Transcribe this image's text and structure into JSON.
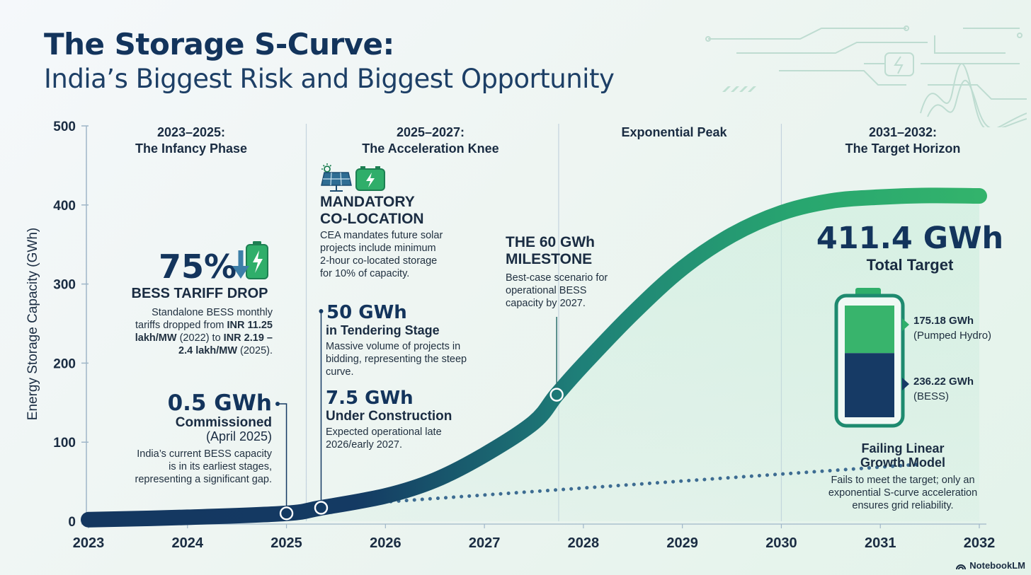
{
  "header": {
    "title": "The Storage S-Curve:",
    "subtitle": "India’s Biggest Risk and Biggest Opportunity"
  },
  "phases": [
    {
      "line1": "2023–2025:",
      "line2": "The Infancy Phase"
    },
    {
      "line1": "2025–2027:",
      "line2": "The Acceleration Knee"
    },
    {
      "line1": "Exponential Peak",
      "line2": ""
    },
    {
      "line1": "2031–2032:",
      "line2": "The Target Horizon"
    }
  ],
  "tariff": {
    "percent": "75%",
    "heading": "BESS TARIFF DROP",
    "t1": "Standalone BESS monthly",
    "t2": "tariffs dropped from ",
    "b1": "INR 11.25",
    "b2": "lakh/MW",
    "t3": " (2022) to ",
    "b3": "INR 2.19 –",
    "b4": "2.4 lakh/MW",
    "t4": " (2025)."
  },
  "commissioned": {
    "value": "0.5 GWh",
    "heading": "Commissioned",
    "sub": "(April 2025)",
    "desc1": "India’s current BESS capacity",
    "desc2": "is in its earliest stages,",
    "desc3": "representing a significant gap."
  },
  "colocation": {
    "h1": "MANDATORY",
    "h2": "CO-LOCATION",
    "d1": "CEA mandates future solar",
    "d2": "projects include minimum",
    "d3": "2-hour co-located storage",
    "d4": "for 10% of capacity."
  },
  "tendering": {
    "value": "50 GWh",
    "heading": "in Tendering Stage",
    "d1": "Massive volume of projects in",
    "d2": "bidding, representing the steep",
    "d3": "curve."
  },
  "construction": {
    "value": "7.5 GWh",
    "heading": "Under Construction",
    "d1": "Expected operational late",
    "d2": "2026/early 2027."
  },
  "milestone": {
    "h1": "THE 60 GWh",
    "h2": "MILESTONE",
    "d1": "Best-case scenario for",
    "d2": "operational BESS",
    "d3": "capacity by 2027."
  },
  "target": {
    "value": "411.4 GWh",
    "label": "Total Target",
    "hydro_value": "175.18 GWh",
    "hydro_label": "(Pumped Hydro)",
    "hydro_gwh": 175.18,
    "bess_value": "236.22 GWh",
    "bess_label": "(BESS)",
    "bess_gwh": 236.22
  },
  "linear": {
    "h1": "Failing Linear",
    "h2": "Growth Model",
    "d1": "Fails to meet the target; only an",
    "d2": "exponential S-curve acceleration",
    "d3": "ensures grid reliability."
  },
  "watermark": "NotebookLM",
  "colors": {
    "navy": "#143760",
    "teal": "#1e8c77",
    "green": "#33b36c",
    "dotted": "#3d6c92"
  },
  "chart_data": {
    "type": "line",
    "title": "The Storage S-Curve",
    "xlabel": "",
    "ylabel": "Energy Storage Capacity (GWh)",
    "x_ticks": [
      "2023",
      "2024",
      "2025",
      "2026",
      "2027",
      "2028",
      "2029",
      "2030",
      "2031",
      "2032"
    ],
    "y_ticks": [
      "0",
      "100",
      "200",
      "300",
      "400",
      "500"
    ],
    "xlim": [
      2023,
      2032
    ],
    "ylim": [
      0,
      500
    ],
    "series": [
      {
        "name": "S-Curve",
        "x": [
          2023,
          2024,
          2025,
          2025.35,
          2026,
          2026.5,
          2027,
          2027.5,
          2027.73,
          2028,
          2028.5,
          2029,
          2029.5,
          2030,
          2030.5,
          2031,
          2031.5,
          2032
        ],
        "y": [
          2,
          5,
          10,
          17,
          32,
          52,
          84,
          125,
          160,
          198,
          263,
          320,
          362,
          390,
          405,
          410,
          412,
          411.4
        ]
      },
      {
        "name": "Linear Growth Model",
        "x": [
          2025.5,
          2031.4
        ],
        "y": [
          20,
          72
        ]
      }
    ],
    "markers": [
      {
        "x": 2025,
        "y": 10
      },
      {
        "x": 2025.35,
        "y": 17
      },
      {
        "x": 2027.73,
        "y": 160
      }
    ],
    "phase_dividers": [
      2025.2,
      2027.75,
      2030
    ]
  }
}
